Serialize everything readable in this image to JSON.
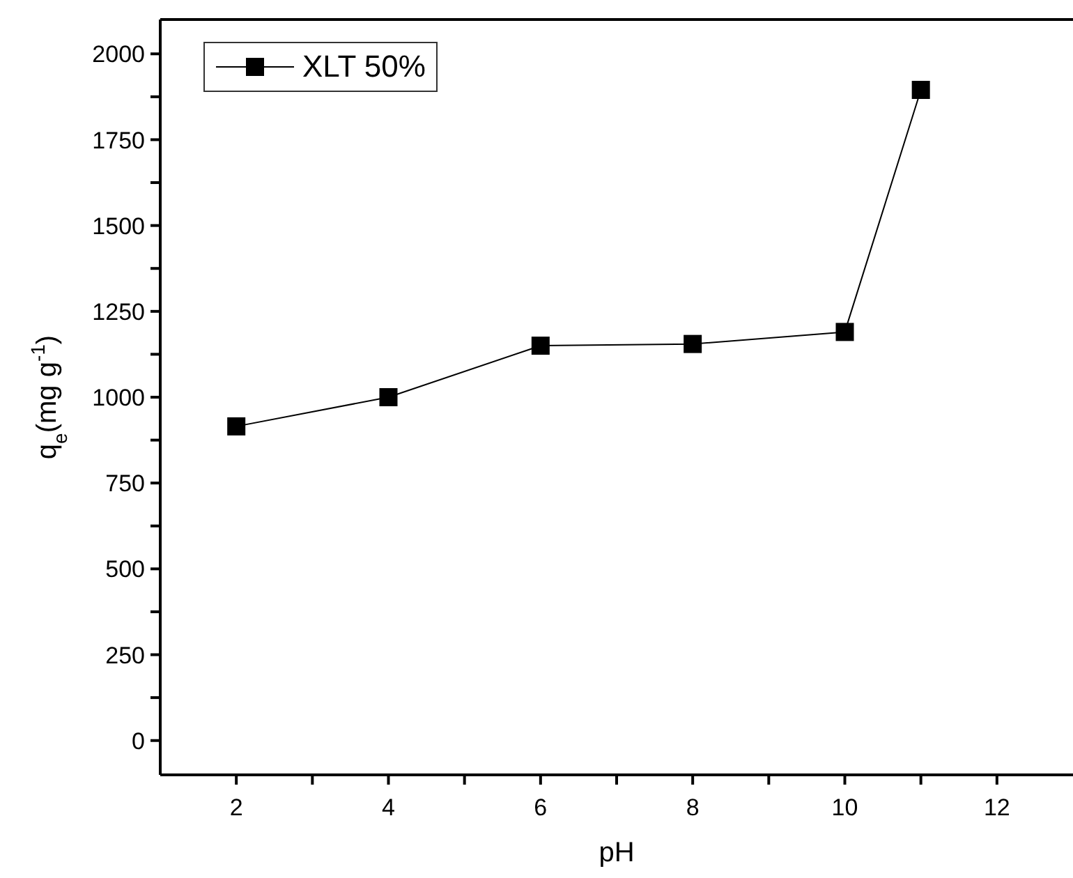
{
  "chart_data": {
    "type": "line",
    "xlabel": "pH",
    "ylabel": "q$_{e}$(mg g$^{-1}$)",
    "x": [
      2,
      4,
      6,
      8,
      10,
      11
    ],
    "series": [
      {
        "name": "XLT 50%",
        "color": "#000000",
        "values": [
          915,
          1000,
          1150,
          1155,
          1190,
          1895
        ]
      }
    ],
    "xlim": [
      1,
      13
    ],
    "xticks": [
      2,
      {
        "value": 3,
        "label": null
      },
      4,
      {
        "value": 5,
        "label": null
      },
      6,
      {
        "value": 7,
        "label": null
      },
      8,
      {
        "value": 9,
        "label": null
      },
      10,
      {
        "value": 11,
        "label": null
      },
      12
    ],
    "ylim": [
      -100,
      2100
    ],
    "yticks": [
      0,
      {
        "value": 125,
        "label": null
      },
      250,
      {
        "value": 375,
        "label": null
      },
      500,
      {
        "value": 625,
        "label": null
      },
      750,
      {
        "value": 875,
        "label": null
      },
      1000,
      {
        "value": 1125,
        "label": null
      },
      1250,
      {
        "value": 1375,
        "label": null
      },
      1500,
      {
        "value": 1625,
        "label": null
      },
      1750,
      {
        "value": 1875,
        "label": null
      },
      2000
    ],
    "legend": "top left",
    "marker": "square",
    "line_style": "solid"
  }
}
